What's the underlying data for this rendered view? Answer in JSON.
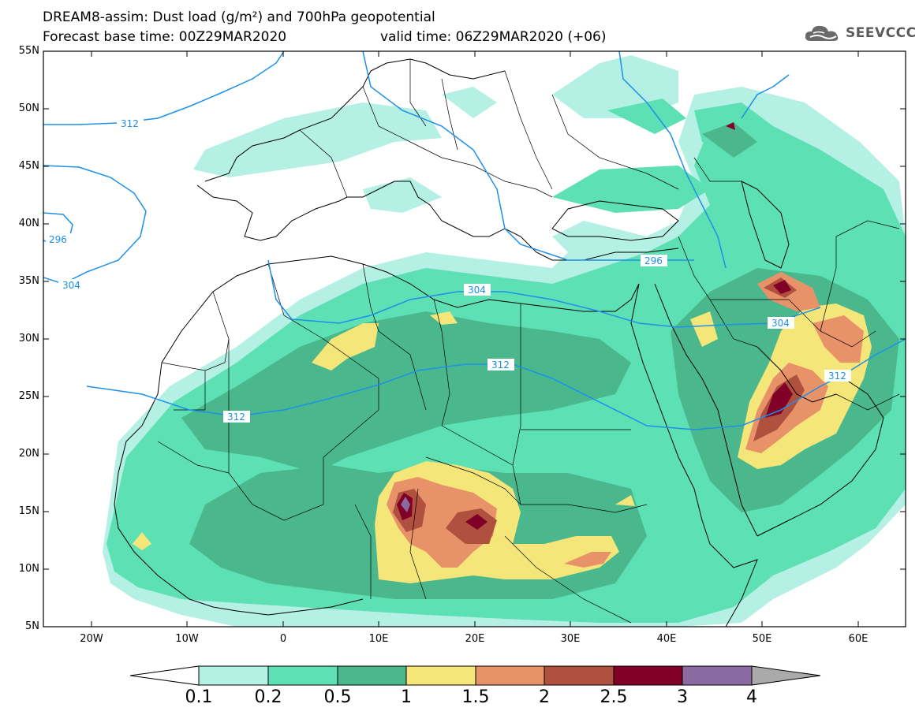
{
  "header": {
    "title_line1": "DREAM8-assim: Dust load (g/m²) and 700hPa geopotential",
    "title_line2": "Forecast base time: 00Z29MAR2020",
    "valid_time": "valid time: 06Z29MAR2020 (+06)",
    "logo_text": "SEEVCCC"
  },
  "map": {
    "lon_range": [
      -25,
      65
    ],
    "lat_range": [
      5,
      55
    ],
    "lat_labels": [
      "55N",
      "50N",
      "45N",
      "40N",
      "35N",
      "30N",
      "25N",
      "20N",
      "15N",
      "10N",
      "5N"
    ],
    "lon_labels": [
      "20W",
      "10W",
      "0",
      "10E",
      "20E",
      "30E",
      "40E",
      "50E",
      "60E"
    ],
    "contour_labels": [
      "312",
      "296",
      "304",
      "304",
      "312",
      "312",
      "296",
      "304",
      "312"
    ],
    "contour_color": "#1e90e8"
  },
  "colorbar": {
    "labels": [
      "0.1",
      "0.2",
      "0.5",
      "1",
      "1.5",
      "2",
      "2.5",
      "3",
      "4"
    ],
    "colors": [
      "#b4f0e4",
      "#5ce0b4",
      "#4ab88c",
      "#f5e67a",
      "#e8926a",
      "#b0503e",
      "#800028",
      "#8a6aa0"
    ],
    "arrow_color": "#aaaaaa",
    "low_arrow_color": "#ffffff"
  }
}
